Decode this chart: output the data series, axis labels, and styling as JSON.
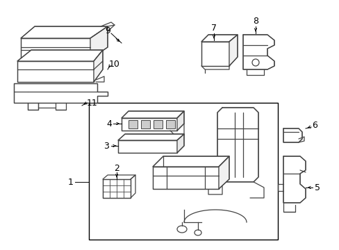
{
  "background_color": "#ffffff",
  "line_color": "#444444",
  "figure_width": 4.89,
  "figure_height": 3.6,
  "dpi": 100
}
